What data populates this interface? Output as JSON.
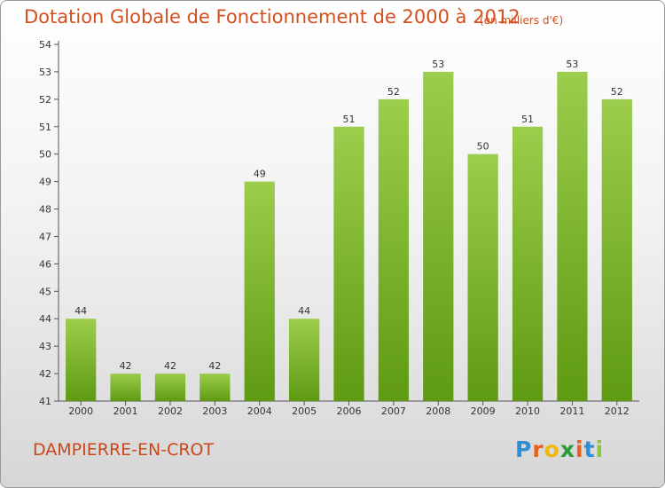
{
  "header": {
    "title": "Dotation Globale de Fonctionnement de 2000 à 2012",
    "subtitle": "(en milliers d'€)"
  },
  "footer": {
    "commune": "DAMPIERRE-EN-CROT",
    "logo_letters": [
      "P",
      "r",
      "o",
      "x",
      "i",
      "t",
      "i"
    ],
    "logo_colors": [
      "#2a8fd6",
      "#e8601c",
      "#f2b705",
      "#2a9d3a",
      "#e8601c",
      "#2a8fd6",
      "#8cc63f"
    ]
  },
  "chart_data": {
    "type": "bar",
    "categories": [
      "2000",
      "2001",
      "2002",
      "2003",
      "2004",
      "2005",
      "2006",
      "2007",
      "2008",
      "2009",
      "2010",
      "2011",
      "2012"
    ],
    "values": [
      44,
      42,
      42,
      42,
      49,
      44,
      51,
      52,
      53,
      50,
      51,
      53,
      52
    ],
    "ylim": [
      41,
      54
    ],
    "yticks": [
      41,
      42,
      43,
      44,
      45,
      46,
      47,
      48,
      49,
      50,
      51,
      52,
      53,
      54
    ],
    "grid": false,
    "bar_color_top": "#9ccd4c",
    "bar_color_bottom": "#5e9a12"
  }
}
